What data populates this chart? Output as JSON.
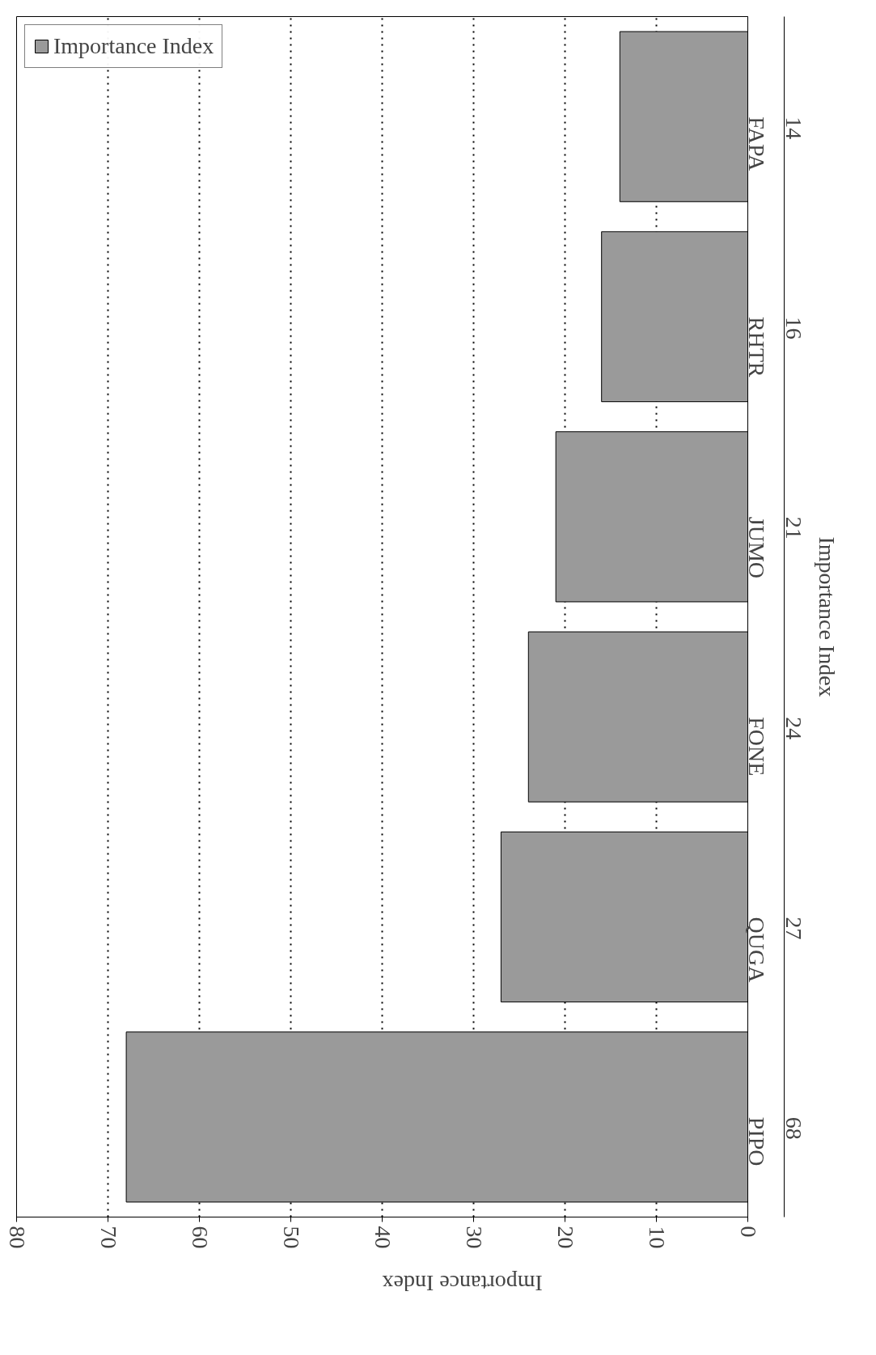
{
  "chart_data": {
    "type": "bar",
    "orientation": "horizontal",
    "xlabel": "Importance Index",
    "categories": [
      "FAPA",
      "RHTR",
      "JUMO",
      "FONE",
      "QUGA",
      "PIPO"
    ],
    "series": [
      {
        "name": "Importance Index",
        "color": "#9a9a9a",
        "values": [
          14,
          16,
          21,
          24,
          27,
          68
        ]
      }
    ],
    "xlim": [
      80,
      0
    ],
    "xticks": [
      0,
      10,
      20,
      30,
      40,
      50,
      60,
      70,
      80
    ],
    "grid": "x",
    "legend": "top left",
    "data_labels": true
  }
}
